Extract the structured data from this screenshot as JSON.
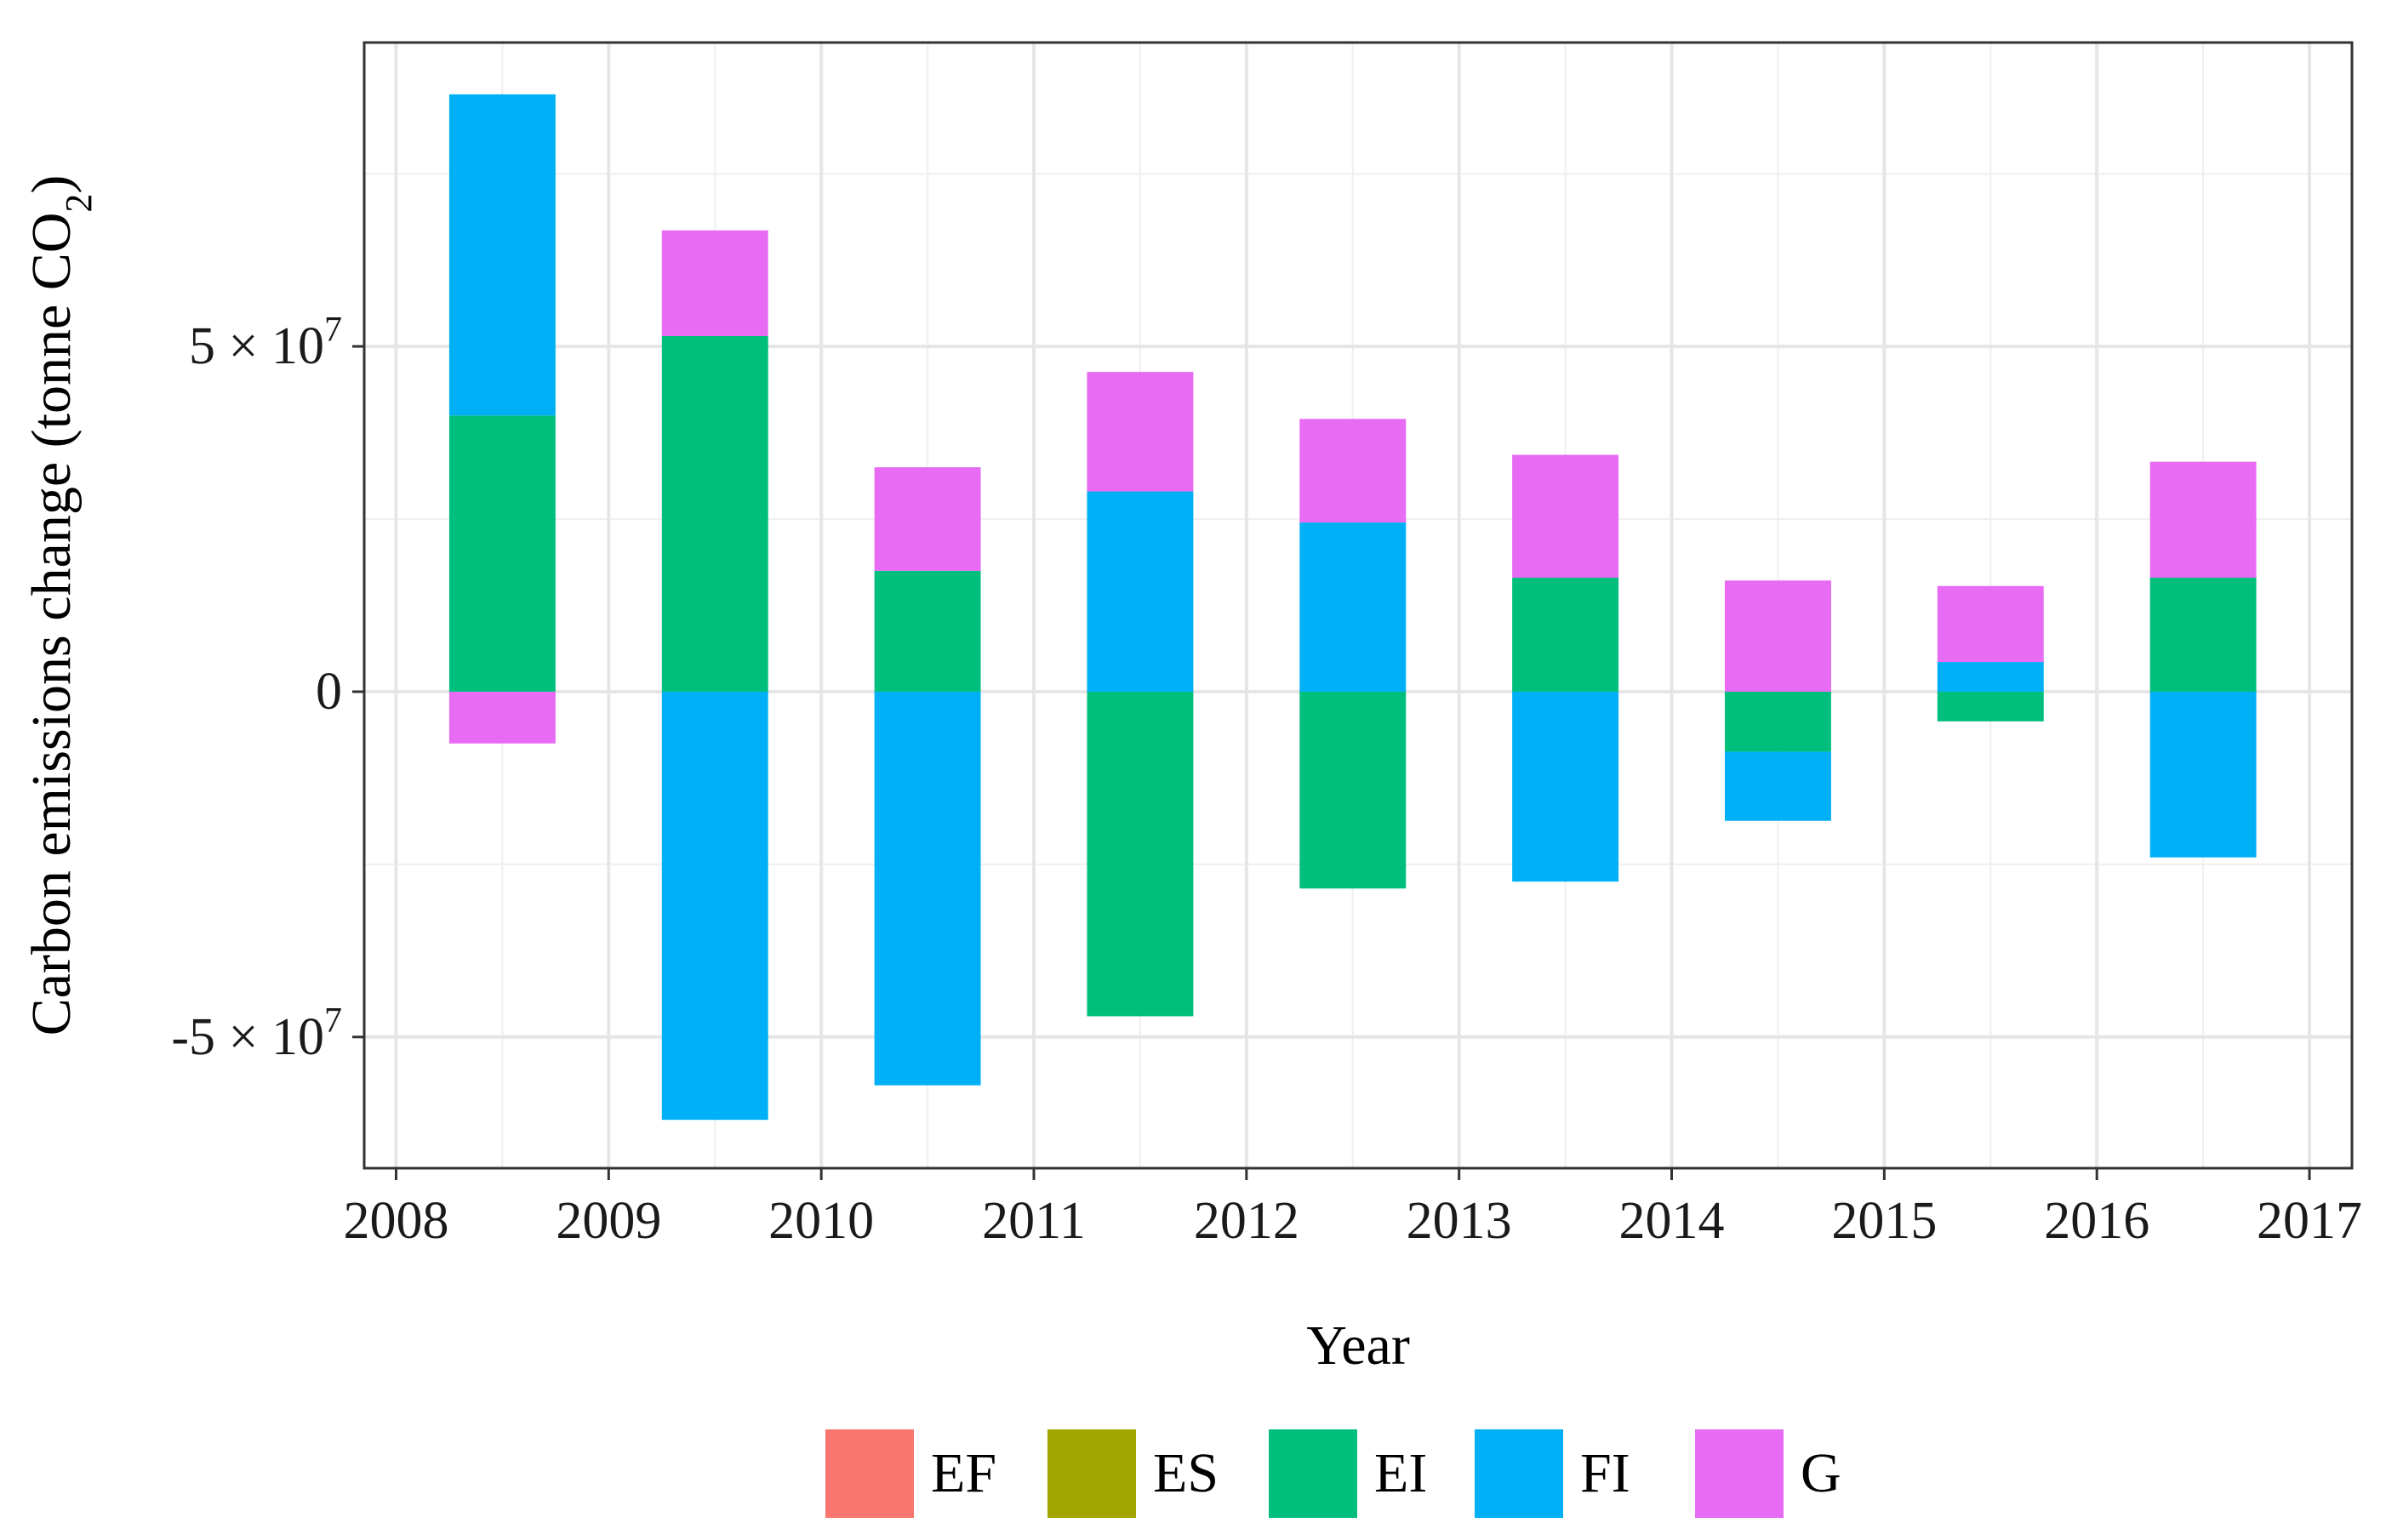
{
  "chart_data": {
    "type": "bar",
    "stacked": true,
    "x_label": "Year",
    "y_label_prefix": "Carbon emissions change (tonne CO",
    "y_label_subscript": "2",
    "y_label_suffix": ")",
    "xlim": [
      2007.85,
      2017.2
    ],
    "ylim": [
      -69000000,
      94000000
    ],
    "x_ticks": [
      2008,
      2009,
      2010,
      2011,
      2012,
      2013,
      2014,
      2015,
      2016,
      2017
    ],
    "x_tick_labels": [
      "2008",
      "2009",
      "2010",
      "2011",
      "2012",
      "2013",
      "2014",
      "2015",
      "2016",
      "2017"
    ],
    "y_ticks": [
      {
        "value": 50000000,
        "mantissa": "5 × 10",
        "exponent": "7"
      },
      {
        "value": 0,
        "mantissa": "0",
        "exponent": ""
      },
      {
        "value": -50000000,
        "mantissa": "-5 × 10",
        "exponent": "7"
      }
    ],
    "bar_half_width": 0.25,
    "categories": [
      2008.5,
      2009.5,
      2010.5,
      2011.5,
      2012.5,
      2013.5,
      2014.5,
      2015.5,
      2016.5
    ],
    "series": [
      {
        "name": "EF",
        "color": "#F8766D",
        "values": [
          0,
          0,
          0,
          0,
          0,
          0,
          0,
          0,
          0
        ]
      },
      {
        "name": "ES",
        "color": "#A3A500",
        "values": [
          0,
          0,
          0,
          0,
          0,
          0,
          0,
          0,
          0
        ]
      },
      {
        "name": "EI",
        "color": "#00BF7D",
        "values": [
          40000000,
          51500000,
          17500000,
          -47000000,
          -28500000,
          16500000,
          -8700000,
          -4300000,
          16500000
        ]
      },
      {
        "name": "FI",
        "color": "#00B0F6",
        "values": [
          46500000,
          -62000000,
          -57000000,
          29000000,
          24500000,
          -27500000,
          -10000000,
          4300000,
          -24000000
        ]
      },
      {
        "name": "G",
        "color": "#E76BF3",
        "values": [
          -7500000,
          15300000,
          15000000,
          17300000,
          15000000,
          17800000,
          16100000,
          11000000,
          16800000
        ]
      }
    ],
    "legend": [
      "EF",
      "ES",
      "EI",
      "FI",
      "G"
    ],
    "legend_position": "bottom",
    "grid": true
  }
}
